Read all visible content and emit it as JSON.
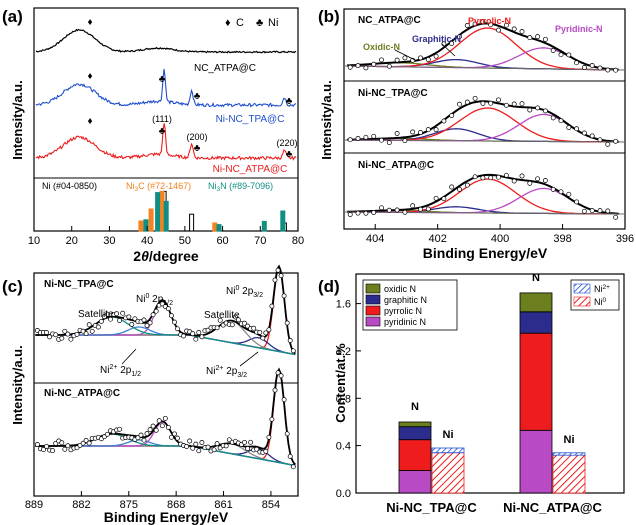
{
  "panels": {
    "a": {
      "letter": "(a)",
      "legend": [
        {
          "symbol": "♦",
          "label": "C"
        },
        {
          "symbol": "♣",
          "label": "Ni"
        }
      ],
      "traces": [
        {
          "name": "NC_ATPA@C",
          "color": "#000000"
        },
        {
          "name": "Ni-NC_TPA@C",
          "color": "#1f4fd0"
        },
        {
          "name": "Ni-NC_ATPA@C",
          "color": "#ee1c1c"
        }
      ],
      "peak_labels": [
        "(111)",
        "(200)",
        "(220)"
      ],
      "reference_labels": {
        "ni": "Ni (#04-0850)",
        "ni3c": "Ni",
        "ni3c_sub": "3",
        "ni3c_rest": "C (#72-1467)",
        "ni3n": "Ni",
        "ni3n_sub": "3",
        "ni3n_rest": "N (#89-7096)"
      },
      "reference_colors": {
        "ni": "#000000",
        "ni3c": "#f58220",
        "ni3n": "#0f8f84"
      },
      "xlabel_text": "2",
      "xlabel_theta": "θ",
      "xlabel_unit": "/degree",
      "ylabel": "Intensity/a.u.",
      "xticks": [
        "10",
        "20",
        "30",
        "40",
        "50",
        "60",
        "70",
        "80"
      ]
    },
    "b": {
      "letter": "(b)",
      "subpanels": [
        "NC_ATPA@C",
        "Ni-NC_TPA@C",
        "Ni-NC_ATPA@C"
      ],
      "components": [
        {
          "name": "Oxidic-N",
          "color": "#6b7f1f"
        },
        {
          "name": "Graphitic-N",
          "color": "#2c2c8c"
        },
        {
          "name": "Pyrrolic-N",
          "color": "#ee1c1c"
        },
        {
          "name": "Pyridinic-N",
          "color": "#b84bc4"
        }
      ],
      "xlabel": "Binding Energy/eV",
      "ylabel": "Intensity/a.u.",
      "xticks": [
        "404",
        "402",
        "400",
        "398",
        "396"
      ]
    },
    "c": {
      "letter": "(c)",
      "subpanels": [
        "Ni-NC_TPA@C",
        "Ni-NC_ATPA@C"
      ],
      "labels": {
        "satellite": "Satellite",
        "ni0_base": "Ni",
        "ni0_sup": "0",
        "ni0_peak": "2p",
        "ni0_sub": "1/2",
        "ni0r_base": "Ni",
        "ni0r_sup": "0",
        "ni0r_peak": "2p",
        "ni0r_sub": "3/2",
        "ni2a_base": "Ni",
        "ni2a_sup": "2+",
        "ni2a_peak": "2p",
        "ni2a_sub": "1/2",
        "ni2b_base": "Ni",
        "ni2b_sup": "2+",
        "ni2b_peak": "2p",
        "ni2b_sub": "3/2"
      },
      "xlabel": "Binding Energy/eV",
      "ylabel": "Intensity/a.u.",
      "xticks": [
        "889",
        "882",
        "875",
        "868",
        "861",
        "854"
      ]
    },
    "d": {
      "letter": "(d)",
      "ylabel": "Content/at.%",
      "yticks": [
        "0.0",
        "0.4",
        "0.8",
        "1.2",
        "1.6"
      ],
      "bar_top_labels": [
        "N",
        "Ni"
      ],
      "legend_n": [
        {
          "name": "oxidic N",
          "color": "#6b7f1f"
        },
        {
          "name": "graphitic N",
          "color": "#2c2c8c"
        },
        {
          "name": "pyrrolic N",
          "color": "#ee1c1c"
        },
        {
          "name": "pyridinic N",
          "color": "#b84bc4"
        }
      ],
      "legend_ni": [
        {
          "name": "Ni",
          "sup": "2+",
          "color": "#1f4fd0"
        },
        {
          "name": "Ni",
          "sup": "0",
          "color": "#ee1c1c"
        }
      ]
    }
  },
  "chart_data": [
    {
      "type": "line",
      "panel": "a",
      "xlabel": "2θ/degree",
      "ylabel": "Intensity/a.u.",
      "xlim": [
        10,
        80
      ],
      "series": [
        {
          "name": "NC_ATPA@C",
          "peaks_2theta": [
            22,
            43
          ]
        },
        {
          "name": "Ni-NC_TPA@C",
          "peaks_2theta": [
            22,
            44.5,
            51.8,
            76.4
          ]
        },
        {
          "name": "Ni-NC_ATPA@C",
          "peaks_2theta": [
            22,
            44.5,
            51.8,
            76.4
          ]
        }
      ],
      "reference_sticks": [
        {
          "name": "Ni (#04-0850)",
          "x": [
            44.5,
            51.8,
            76.4
          ],
          "intensity": [
            0.99,
            0.42,
            0.2
          ]
        },
        {
          "name": "Ni3C (#72-1467)",
          "x": [
            39.0,
            41.7,
            44.6,
            58.6
          ],
          "intensity": [
            0.25,
            0.55,
            0.99,
            0.2
          ]
        },
        {
          "name": "Ni3N (#89-7096)",
          "x": [
            39.0,
            42.1,
            44.4,
            58.4,
            70.4,
            75.3
          ],
          "intensity": [
            0.28,
            0.96,
            0.74,
            0.16,
            0.24,
            0.5
          ]
        }
      ]
    },
    {
      "type": "line",
      "panel": "b",
      "xlabel": "Binding Energy/eV",
      "ylabel": "Intensity/a.u.",
      "xlim": [
        405,
        396
      ],
      "components_eV": {
        "Oxidic-N": 403.2,
        "Graphitic-N": 401.4,
        "Pyrrolic-N": 400.4,
        "Pyridinic-N": 398.6
      }
    },
    {
      "type": "line",
      "panel": "c",
      "xlabel": "Binding Energy/eV",
      "ylabel": "Intensity/a.u.",
      "xlim": [
        889,
        850
      ],
      "peaks_eV": {
        "Ni0 2p3/2": 852.8,
        "Ni2+ 2p3/2": 855.8,
        "Satellite (2p3/2)": 859.5,
        "Ni0 2p1/2": 870.0,
        "Ni2+ 2p1/2": 873.5,
        "Satellite (2p1/2)": 877.0
      }
    },
    {
      "type": "bar",
      "panel": "d",
      "categories": [
        "Ni-NC_TPA@C",
        "Ni-NC_ATPA@C"
      ],
      "ylabel": "Content/at.%",
      "ylim": [
        0,
        1.85
      ],
      "n_stack": [
        {
          "name": "pyridinic N",
          "values": [
            0.19,
            0.53
          ]
        },
        {
          "name": "pyrrolic N",
          "values": [
            0.26,
            0.82
          ]
        },
        {
          "name": "graphitic N",
          "values": [
            0.11,
            0.18
          ]
        },
        {
          "name": "oxidic N",
          "values": [
            0.04,
            0.16
          ]
        }
      ],
      "ni_stack": [
        {
          "name": "Ni0",
          "values": [
            0.34,
            0.32
          ]
        },
        {
          "name": "Ni2+",
          "values": [
            0.04,
            0.02
          ]
        }
      ]
    }
  ]
}
